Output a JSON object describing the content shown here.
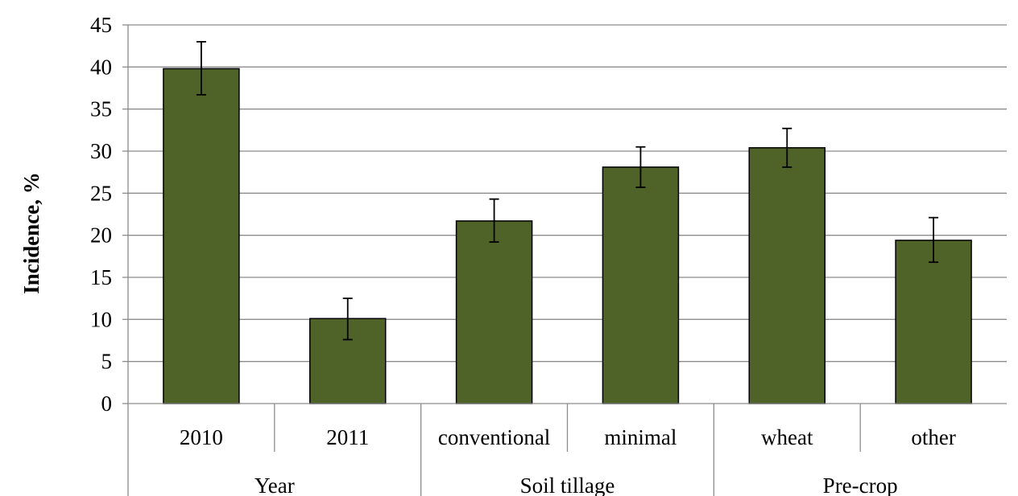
{
  "chart_data": {
    "type": "bar",
    "title": "",
    "xlabel": "",
    "ylabel": "Incidence, %",
    "ylim": [
      0,
      45
    ],
    "yticks": [
      "0",
      "5",
      "10",
      "15",
      "20",
      "25",
      "30",
      "35",
      "40",
      "45"
    ],
    "grid": true,
    "legend": "none",
    "categories": [
      "2010",
      "2011",
      "conventional",
      "minimal",
      "wheat",
      "other"
    ],
    "groups": [
      {
        "label": "Year",
        "categories": [
          "2010",
          "2011"
        ]
      },
      {
        "label": "Soil tillage",
        "categories": [
          "conventional",
          "minimal"
        ]
      },
      {
        "label": "Pre-crop",
        "categories": [
          "wheat",
          "other"
        ]
      }
    ],
    "values": [
      39.8,
      10.1,
      21.7,
      28.1,
      30.4,
      19.4
    ],
    "error_low": [
      36.7,
      7.6,
      19.2,
      25.7,
      28.1,
      16.8
    ],
    "error_high": [
      43.0,
      12.5,
      24.3,
      30.5,
      32.7,
      22.1
    ],
    "colors": {
      "bar": "#4f6228",
      "bar_outline": "#000000",
      "grid": "#8c8c8c"
    }
  }
}
